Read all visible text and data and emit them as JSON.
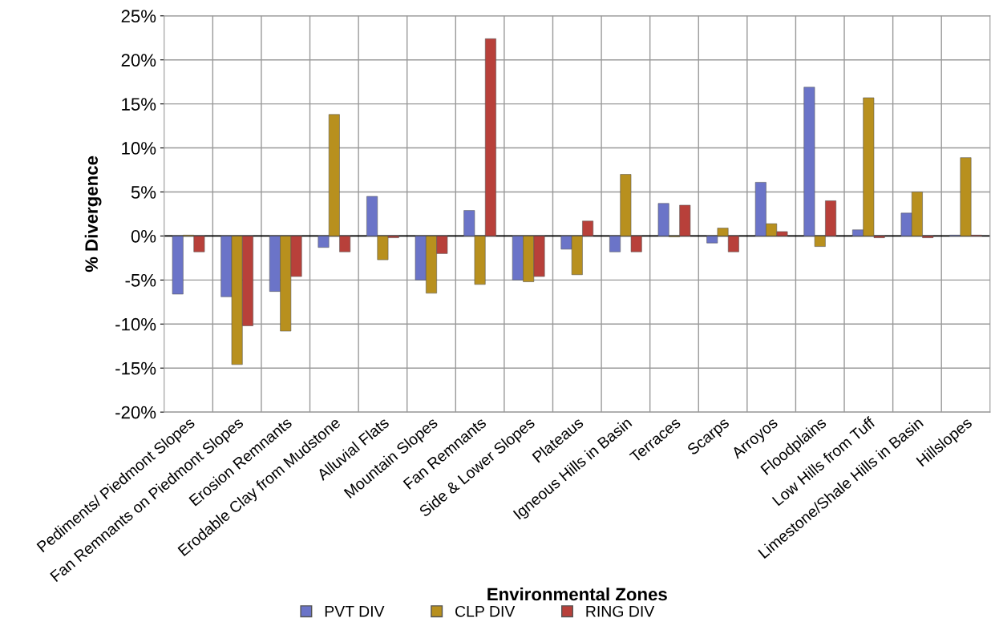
{
  "chart_data": {
    "type": "bar",
    "xlabel": "Environmental Zones",
    "ylabel": "% Divergence",
    "categories": [
      "Pediments/ Piedmont Slopes",
      "Fan Remnants on Piedmont Slopes",
      "Erosion Remnants",
      "Erodable Clay from Mudstone",
      "Alluvial Flats",
      "Mountain Slopes",
      "Fan Remnants",
      "Side & Lower Slopes",
      "Plateaus",
      "Igneous Hills in Basin",
      "Terraces",
      "Scarps",
      "Arroyos",
      "Floodplains",
      "Low Hills from Tuff",
      "Limestone/Shale Hills in Basin",
      "Hillslopes"
    ],
    "series": [
      {
        "name": "PVT DIV",
        "color": "#6b74c8",
        "values": [
          -6.6,
          -6.9,
          -6.3,
          -1.3,
          4.5,
          -5.0,
          2.9,
          -5.0,
          -1.5,
          -1.8,
          3.7,
          -0.8,
          6.1,
          16.9,
          0.7,
          2.6,
          0.1
        ]
      },
      {
        "name": "CLP DIV",
        "color": "#b8901e",
        "values": [
          0.1,
          -14.6,
          -10.8,
          13.8,
          -2.7,
          -6.5,
          -5.5,
          -5.2,
          -4.4,
          7.0,
          -0.1,
          0.9,
          1.4,
          -1.2,
          15.7,
          5.0,
          8.9
        ]
      },
      {
        "name": "RING DIV",
        "color": "#b8403a",
        "values": [
          -1.8,
          -10.2,
          -4.6,
          -1.8,
          -0.2,
          -2.0,
          22.4,
          -4.6,
          1.7,
          -1.8,
          3.5,
          -1.8,
          0.5,
          4.0,
          -0.2,
          -0.2,
          0.1
        ]
      }
    ],
    "ylim": [
      -20,
      25
    ],
    "yticks": [
      {
        "value": -20,
        "label": "-20%"
      },
      {
        "value": -15,
        "label": "-15%"
      },
      {
        "value": -10,
        "label": "-10%"
      },
      {
        "value": -5,
        "label": "-5%"
      },
      {
        "value": 0,
        "label": "0%"
      },
      {
        "value": 5,
        "label": "5%"
      },
      {
        "value": 10,
        "label": "10%"
      },
      {
        "value": 15,
        "label": "15%"
      },
      {
        "value": 20,
        "label": "20%"
      },
      {
        "value": 25,
        "label": "25%"
      }
    ],
    "grid": true,
    "legend": "bottom"
  }
}
